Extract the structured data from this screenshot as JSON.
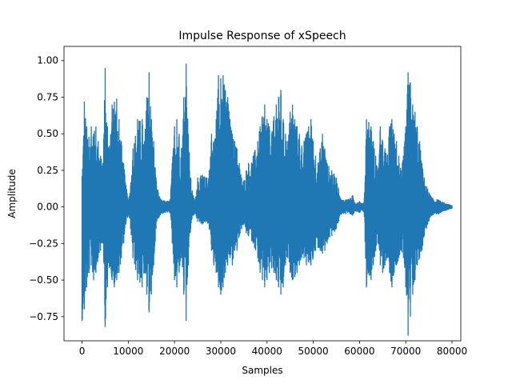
{
  "chart_data": {
    "type": "line",
    "title": "Impulse Response of xSpeech",
    "xlabel": "Samples",
    "ylabel": "Amplitude",
    "xlim": [
      -3900,
      81900
    ],
    "ylim": [
      -0.915,
      1.097
    ],
    "xticks": [
      0,
      10000,
      20000,
      30000,
      40000,
      50000,
      60000,
      70000,
      80000
    ],
    "xtick_labels": [
      "0",
      "10000",
      "20000",
      "30000",
      "40000",
      "50000",
      "60000",
      "70000",
      "80000"
    ],
    "yticks": [
      -0.75,
      -0.5,
      -0.25,
      0.0,
      0.25,
      0.5,
      0.75,
      1.0
    ],
    "ytick_labels": [
      "−0.75",
      "−0.50",
      "−0.25",
      "0.00",
      "0.25",
      "0.50",
      "0.75",
      "1.00"
    ],
    "grid": false,
    "series": [
      {
        "color": "#1f77b4",
        "samples_total": 80000,
        "envelope": {
          "x": [
            0,
            500,
            1000,
            1500,
            2000,
            2500,
            3000,
            3500,
            4000,
            4500,
            5000,
            5500,
            6000,
            6500,
            7000,
            7500,
            8000,
            8500,
            9000,
            9500,
            10000,
            10500,
            11000,
            12000,
            13000,
            13500,
            14000,
            14500,
            15000,
            15500,
            16000,
            16500,
            17000,
            18000,
            19000,
            19500,
            20000,
            20500,
            21000,
            21500,
            22000,
            22500,
            23000,
            23500,
            24000,
            24500,
            25000,
            26000,
            27000,
            27500,
            28000,
            28500,
            29000,
            29500,
            30000,
            30500,
            31000,
            31500,
            32000,
            32500,
            33000,
            33500,
            34000,
            34500,
            35000,
            35500,
            36000,
            37000,
            38000,
            38500,
            39000,
            39500,
            40000,
            40500,
            41000,
            41500,
            42000,
            42500,
            43000,
            43500,
            44000,
            44500,
            45000,
            45500,
            46000,
            46500,
            47000,
            47500,
            48000,
            48500,
            49000,
            49500,
            50000,
            50500,
            51000,
            51500,
            52000,
            52500,
            53000,
            54000,
            55000,
            55500,
            56000,
            57000,
            58000,
            58500,
            59000,
            59500,
            60000,
            60500,
            61000,
            61500,
            62000,
            62500,
            63000,
            63500,
            64000,
            64500,
            65000,
            65500,
            66000,
            66500,
            67000,
            67500,
            68000,
            68500,
            69000,
            69500,
            70000,
            70500,
            71000,
            71500,
            72000,
            72500,
            73000,
            73500,
            74000,
            75000,
            76000,
            77000,
            78000,
            79000,
            80000
          ],
          "upper": [
            0.21,
            0.72,
            0.55,
            0.48,
            0.55,
            0.5,
            0.55,
            0.45,
            0.35,
            0.3,
            0.95,
            0.55,
            0.4,
            0.7,
            0.72,
            0.74,
            0.6,
            0.45,
            0.3,
            0.15,
            0.05,
            0.15,
            0.4,
            0.6,
            0.6,
            0.45,
            0.75,
            0.92,
            0.6,
            0.45,
            0.2,
            0.1,
            0.05,
            0.04,
            0.04,
            0.3,
            0.55,
            0.6,
            0.5,
            0.4,
            0.75,
            0.98,
            0.5,
            0.2,
            0.08,
            0.05,
            0.2,
            0.22,
            0.2,
            0.25,
            0.5,
            0.45,
            0.6,
            0.9,
            0.88,
            0.9,
            0.8,
            0.75,
            0.6,
            0.5,
            0.45,
            0.4,
            0.3,
            0.2,
            0.18,
            0.25,
            0.3,
            0.35,
            0.45,
            0.55,
            0.62,
            0.7,
            0.6,
            0.55,
            0.5,
            0.62,
            0.7,
            0.75,
            0.8,
            0.6,
            0.5,
            0.45,
            0.65,
            0.7,
            0.6,
            0.55,
            0.5,
            0.42,
            0.45,
            0.5,
            0.55,
            0.6,
            0.45,
            0.35,
            0.3,
            0.4,
            0.5,
            0.4,
            0.3,
            0.25,
            0.2,
            0.12,
            0.05,
            0.05,
            0.06,
            0.08,
            0.03,
            0.03,
            0.04,
            0.02,
            0.04,
            0.6,
            0.58,
            0.55,
            0.45,
            0.35,
            0.25,
            0.55,
            0.45,
            0.4,
            0.35,
            0.55,
            0.6,
            0.5,
            0.45,
            0.35,
            0.25,
            0.35,
            0.55,
            0.92,
            0.85,
            0.7,
            0.65,
            0.55,
            0.45,
            0.3,
            0.2,
            0.1,
            0.05,
            0.05,
            0.03,
            0.02,
            0.01
          ],
          "lower": [
            -0.78,
            -0.7,
            -0.55,
            -0.45,
            -0.4,
            -0.5,
            -0.45,
            -0.35,
            -0.3,
            -0.25,
            -0.82,
            -0.55,
            -0.4,
            -0.5,
            -0.55,
            -0.5,
            -0.45,
            -0.35,
            -0.25,
            -0.12,
            -0.05,
            -0.15,
            -0.35,
            -0.5,
            -0.55,
            -0.45,
            -0.6,
            -0.72,
            -0.6,
            -0.4,
            -0.15,
            -0.08,
            -0.05,
            -0.04,
            -0.04,
            -0.25,
            -0.5,
            -0.55,
            -0.45,
            -0.35,
            -0.6,
            -0.78,
            -0.4,
            -0.15,
            -0.06,
            -0.05,
            -0.1,
            -0.12,
            -0.1,
            -0.15,
            -0.3,
            -0.4,
            -0.45,
            -0.55,
            -0.6,
            -0.55,
            -0.45,
            -0.4,
            -0.35,
            -0.4,
            -0.3,
            -0.3,
            -0.2,
            -0.15,
            -0.12,
            -0.18,
            -0.2,
            -0.25,
            -0.35,
            -0.45,
            -0.5,
            -0.55,
            -0.5,
            -0.45,
            -0.42,
            -0.45,
            -0.5,
            -0.55,
            -0.6,
            -0.55,
            -0.4,
            -0.35,
            -0.45,
            -0.5,
            -0.48,
            -0.45,
            -0.4,
            -0.35,
            -0.35,
            -0.4,
            -0.38,
            -0.4,
            -0.35,
            -0.3,
            -0.28,
            -0.3,
            -0.32,
            -0.3,
            -0.25,
            -0.2,
            -0.15,
            -0.1,
            -0.05,
            -0.05,
            -0.05,
            -0.06,
            -0.03,
            -0.03,
            -0.04,
            -0.02,
            -0.04,
            -0.55,
            -0.45,
            -0.5,
            -0.4,
            -0.3,
            -0.25,
            -0.4,
            -0.45,
            -0.4,
            -0.35,
            -0.45,
            -0.55,
            -0.45,
            -0.4,
            -0.35,
            -0.3,
            -0.35,
            -0.55,
            -0.88,
            -0.75,
            -0.6,
            -0.5,
            -0.4,
            -0.35,
            -0.3,
            -0.2,
            -0.1,
            -0.05,
            -0.05,
            -0.03,
            -0.02,
            -0.01
          ]
        }
      }
    ]
  }
}
